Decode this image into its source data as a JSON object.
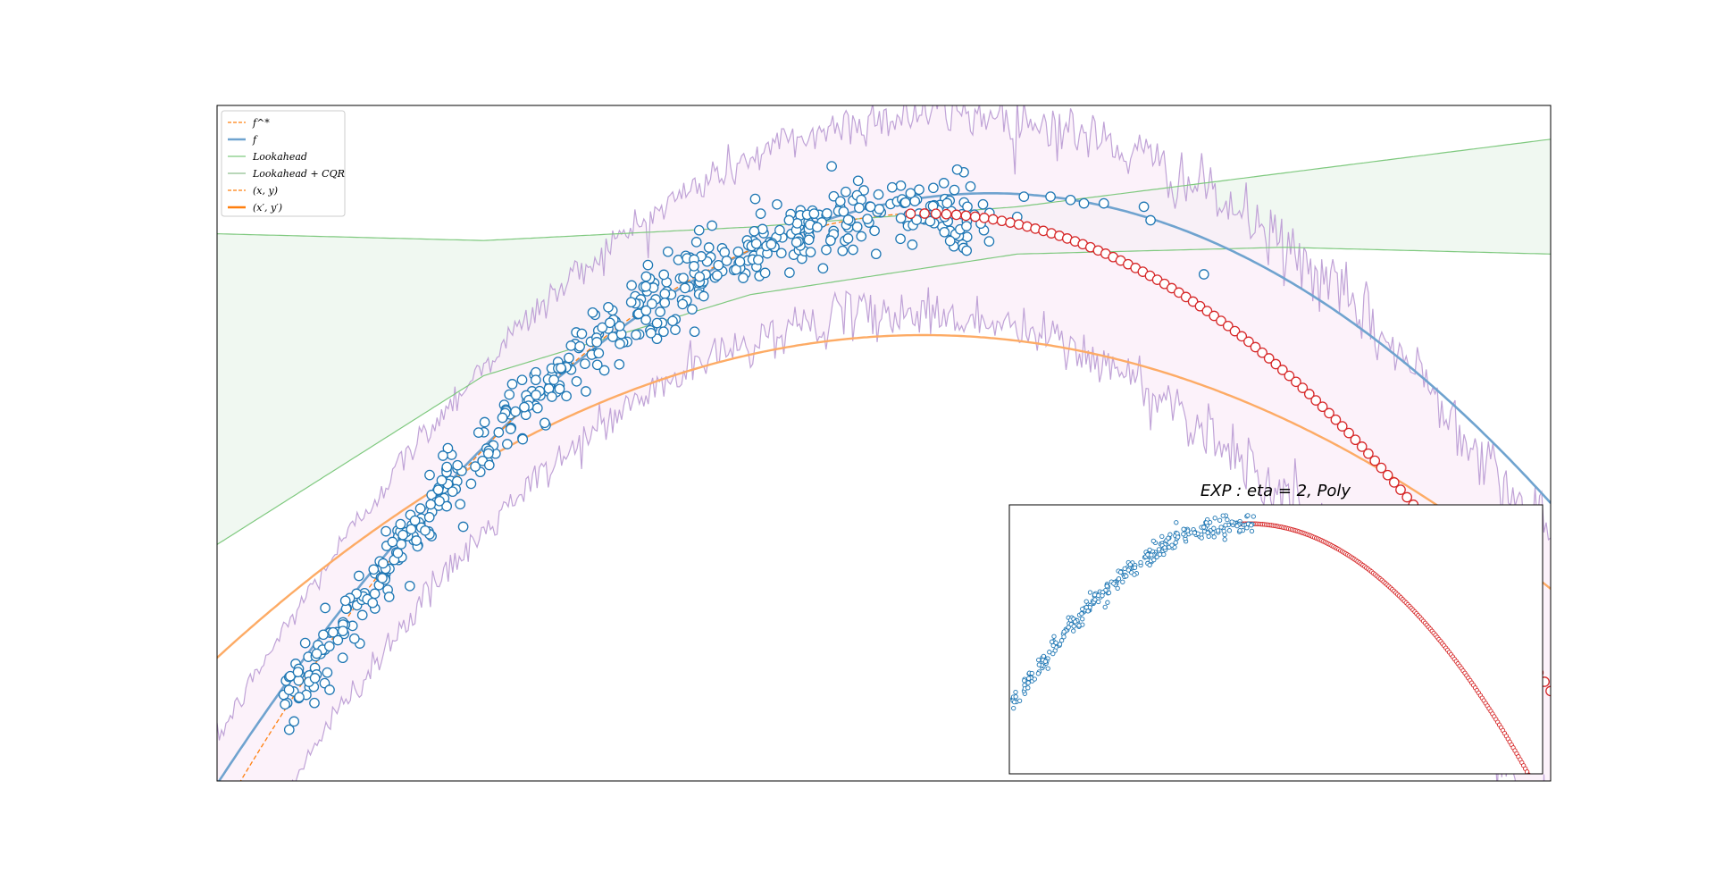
{
  "chart_data": {
    "type": "scatter",
    "title": "",
    "xlabel": "",
    "ylabel": "",
    "axes_visible": false,
    "grid": false,
    "legend_placement": "top-left",
    "colors": {
      "blue": "#1f77b4",
      "line_blue": "#6fa3cf",
      "red": "#d62728",
      "orange": "#ff7f0e",
      "orange_light": "#fdab65",
      "green": "#7fc97f",
      "green_fill": "#e8f4ea",
      "purple": "#c0a3d7",
      "pink_fill": "#fbeef8"
    },
    "legend": [
      {
        "label": "f^*",
        "style": "dashed",
        "color": "#ff7f0e"
      },
      {
        "label": "f",
        "style": "solid",
        "color": "#6fa3cf"
      },
      {
        "label": "Lookahead",
        "style": "solid-thin",
        "color": "#7fc97f"
      },
      {
        "label": "Lookahead + CQR",
        "style": "solid-thin",
        "color": "#8fbf8f"
      },
      {
        "label": "(x, y)",
        "style": "dashed",
        "color": "#ff7f0e"
      },
      {
        "label": "(x′, y′)",
        "style": "solid",
        "color": "#ff7f0e"
      }
    ],
    "main": {
      "xlim": [
        0,
        1
      ],
      "ylim": [
        0,
        1
      ],
      "f_star": {
        "a": -3.2,
        "h": 0.53,
        "k": 0.84
      },
      "f": {
        "a": -2.6,
        "h": 0.58,
        "k": 0.87
      },
      "orange_curve": {
        "a": -1.7,
        "h": 0.53,
        "k": 0.66
      },
      "lookahead_upper": {
        "x": [
          0,
          0.2,
          0.4,
          0.6,
          0.8,
          1.0
        ],
        "y": [
          0.81,
          0.8,
          0.82,
          0.85,
          0.9,
          0.95
        ]
      },
      "lookahead_lower": {
        "x": [
          0,
          0.2,
          0.4,
          0.6,
          0.8,
          1.0
        ],
        "y": [
          0.35,
          0.6,
          0.72,
          0.78,
          0.79,
          0.78
        ]
      },
      "band_half_width": 0.12,
      "band_growth": 0.1,
      "scatter_train": {
        "count": 520,
        "x_range": [
          0.05,
          0.58
        ],
        "noise": 0.025
      },
      "scatter_extra": {
        "x": [
          0.565,
          0.605,
          0.6,
          0.625,
          0.64,
          0.65,
          0.665,
          0.695,
          0.7,
          0.555,
          0.545,
          0.52,
          0.49,
          0.46,
          0.74
        ],
        "y": [
          0.88,
          0.865,
          0.835,
          0.865,
          0.86,
          0.855,
          0.855,
          0.85,
          0.83,
          0.905,
          0.885,
          0.87,
          0.85,
          0.8,
          0.75
        ]
      },
      "scatter_test": {
        "count": 90,
        "x_range": [
          0.52,
          1.0
        ]
      }
    },
    "inset": {
      "title": "EXP : eta = 2, Poly",
      "xlim": [
        0,
        1
      ],
      "ylim": [
        0,
        1
      ],
      "curve": {
        "a": -3.4,
        "h": 0.45,
        "k": 0.93
      },
      "train_x_range": [
        0.0,
        0.46
      ],
      "test_x_range": [
        0.42,
        1.0
      ],
      "train_count": 300,
      "test_count": 180
    }
  }
}
